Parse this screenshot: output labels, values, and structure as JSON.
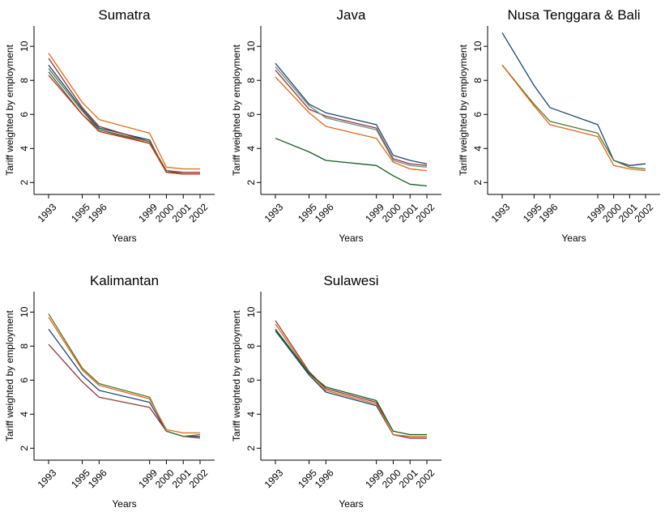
{
  "chart_data": [
    {
      "type": "line",
      "title": "Sumatra",
      "xlabel": "Years",
      "ylabel": "Tariff weighted by employment",
      "x": [
        1993,
        1995,
        1996,
        1999,
        2000,
        2001,
        2002
      ],
      "yticks": [
        2,
        4,
        6,
        8,
        10
      ],
      "ylim": [
        1.3,
        11.2
      ],
      "series": [
        {
          "color": "#1a476f",
          "values": [
            8.9,
            6.3,
            5.2,
            4.5,
            2.6,
            2.5,
            2.5
          ]
        },
        {
          "color": "#90353b",
          "values": [
            9.3,
            6.4,
            5.3,
            4.4,
            2.7,
            2.6,
            2.6
          ]
        },
        {
          "color": "#2d6d66",
          "values": [
            8.5,
            6.0,
            5.1,
            4.3,
            2.7,
            2.5,
            2.5
          ]
        },
        {
          "color": "#e06816",
          "values": [
            9.6,
            6.7,
            5.7,
            4.9,
            2.9,
            2.8,
            2.8
          ]
        },
        {
          "color": "#55752f",
          "values": [
            8.7,
            6.2,
            5.1,
            4.4,
            2.7,
            2.5,
            2.5
          ]
        },
        {
          "color": "#dc2a0e",
          "values": [
            8.3,
            6.0,
            5.0,
            4.3,
            2.6,
            2.5,
            2.5
          ]
        }
      ]
    },
    {
      "type": "line",
      "title": "Java",
      "xlabel": "Years",
      "ylabel": "Tariff weighted by employment",
      "x": [
        1993,
        1995,
        1996,
        1999,
        2000,
        2001,
        2002
      ],
      "yticks": [
        2,
        4,
        6,
        8,
        10
      ],
      "ylim": [
        1.3,
        11.2
      ],
      "series": [
        {
          "color": "#1a476f",
          "values": [
            9.0,
            6.6,
            6.1,
            5.4,
            3.6,
            3.3,
            3.1
          ]
        },
        {
          "color": "#90353b",
          "values": [
            8.6,
            6.3,
            5.9,
            5.2,
            3.4,
            3.1,
            3.0
          ]
        },
        {
          "color": "#6e8e84",
          "values": [
            8.8,
            6.5,
            5.8,
            5.1,
            3.3,
            3.0,
            2.9
          ]
        },
        {
          "color": "#e06816",
          "values": [
            8.2,
            6.1,
            5.3,
            4.6,
            3.2,
            2.8,
            2.7
          ]
        },
        {
          "color": "#115d22",
          "values": [
            4.6,
            3.8,
            3.3,
            3.0,
            2.4,
            1.9,
            1.8
          ]
        }
      ]
    },
    {
      "type": "line",
      "title": "Nusa Tenggara & Bali",
      "xlabel": "Years",
      "ylabel": "Tariff weighted by employment",
      "x": [
        1993,
        1995,
        1996,
        1999,
        2000,
        2001,
        2002
      ],
      "yticks": [
        2,
        4,
        6,
        8,
        10
      ],
      "ylim": [
        1.3,
        11.2
      ],
      "series": [
        {
          "color": "#1a476f",
          "values": [
            10.8,
            7.7,
            6.4,
            5.4,
            3.3,
            3.0,
            3.1
          ]
        },
        {
          "color": "#55752f",
          "values": [
            8.9,
            6.6,
            5.6,
            4.9,
            3.3,
            2.9,
            2.8
          ]
        },
        {
          "color": "#e06816",
          "values": [
            8.9,
            6.5,
            5.4,
            4.7,
            3.0,
            2.8,
            2.7
          ]
        }
      ]
    },
    {
      "type": "line",
      "title": "Kalimantan",
      "xlabel": "Years",
      "ylabel": "Tariff weighted by employment",
      "x": [
        1993,
        1995,
        1996,
        1999,
        2000,
        2001,
        2002
      ],
      "yticks": [
        2,
        4,
        6,
        8,
        10
      ],
      "ylim": [
        1.3,
        11.2
      ],
      "series": [
        {
          "color": "#90353b",
          "values": [
            8.1,
            5.9,
            5.0,
            4.4,
            3.0,
            2.7,
            2.6
          ]
        },
        {
          "color": "#1a476f",
          "values": [
            9.0,
            6.3,
            5.4,
            4.7,
            3.0,
            2.7,
            2.7
          ]
        },
        {
          "color": "#55752f",
          "values": [
            9.9,
            6.7,
            5.8,
            5.0,
            3.0,
            2.7,
            2.8
          ]
        },
        {
          "color": "#e06816",
          "values": [
            9.7,
            6.6,
            5.7,
            4.9,
            3.1,
            2.9,
            2.9
          ]
        }
      ]
    },
    {
      "type": "line",
      "title": "Sulawesi",
      "xlabel": "Years",
      "ylabel": "Tariff weighted by employment",
      "x": [
        1993,
        1995,
        1996,
        1999,
        2000,
        2001,
        2002
      ],
      "yticks": [
        2,
        4,
        6,
        8,
        10
      ],
      "ylim": [
        1.3,
        11.2
      ],
      "series": [
        {
          "color": "#1a476f",
          "values": [
            8.9,
            6.3,
            5.3,
            4.5,
            2.8,
            2.6,
            2.6
          ]
        },
        {
          "color": "#90353b",
          "values": [
            9.5,
            6.5,
            5.5,
            4.7,
            2.8,
            2.6,
            2.6
          ]
        },
        {
          "color": "#e06816",
          "values": [
            9.3,
            6.4,
            5.4,
            4.6,
            2.8,
            2.7,
            2.7
          ]
        },
        {
          "color": "#115d22",
          "values": [
            9.0,
            6.4,
            5.6,
            4.8,
            3.0,
            2.8,
            2.8
          ]
        }
      ]
    }
  ]
}
